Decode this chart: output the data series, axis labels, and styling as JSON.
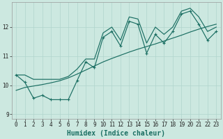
{
  "xlabel": "Humidex (Indice chaleur)",
  "x_values": [
    0,
    1,
    2,
    3,
    4,
    5,
    6,
    7,
    8,
    9,
    10,
    11,
    12,
    13,
    14,
    15,
    16,
    17,
    18,
    19,
    20,
    21,
    22,
    23
  ],
  "y_raw": [
    10.35,
    10.1,
    9.55,
    9.65,
    9.5,
    9.5,
    9.5,
    10.15,
    10.8,
    10.6,
    11.65,
    11.85,
    11.35,
    12.2,
    12.1,
    11.1,
    11.75,
    11.45,
    11.85,
    12.45,
    12.55,
    12.1,
    11.55,
    11.85
  ],
  "y_smooth": [
    9.82,
    9.92,
    9.97,
    10.02,
    10.08,
    10.15,
    10.25,
    10.38,
    10.52,
    10.66,
    10.8,
    10.92,
    11.03,
    11.14,
    11.24,
    11.33,
    11.42,
    11.52,
    11.62,
    11.72,
    11.83,
    11.93,
    12.02,
    12.1
  ],
  "y_upper": [
    10.35,
    10.35,
    10.2,
    10.2,
    10.2,
    10.2,
    10.3,
    10.55,
    10.9,
    10.9,
    11.8,
    12.0,
    11.55,
    12.35,
    12.28,
    11.45,
    12.0,
    11.75,
    12.0,
    12.55,
    12.65,
    12.35,
    11.85,
    12.0
  ],
  "bg_color": "#cce8e0",
  "grid_major_color": "#b0d4cc",
  "grid_minor_color": "#c0ddd6",
  "line_color": "#1a6e62",
  "ylim": [
    8.85,
    12.85
  ],
  "xlim": [
    -0.5,
    23.5
  ],
  "yticks": [
    9,
    10,
    11,
    12
  ],
  "xticks": [
    0,
    1,
    2,
    3,
    4,
    5,
    6,
    7,
    8,
    9,
    10,
    11,
    12,
    13,
    14,
    15,
    16,
    17,
    18,
    19,
    20,
    21,
    22,
    23
  ],
  "figsize": [
    3.2,
    2.0
  ],
  "dpi": 100,
  "tick_labelsize": 5.5,
  "xlabel_fontsize": 7
}
